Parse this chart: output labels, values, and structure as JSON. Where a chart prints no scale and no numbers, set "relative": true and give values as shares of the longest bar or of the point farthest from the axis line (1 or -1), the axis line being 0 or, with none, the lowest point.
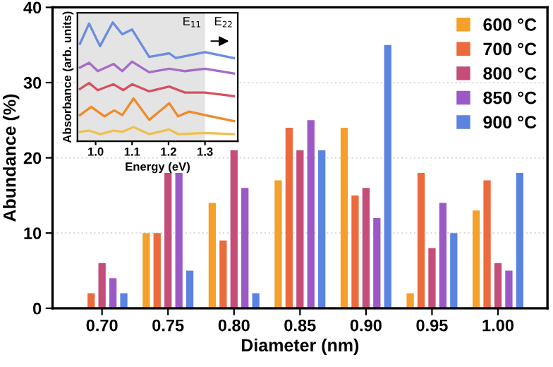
{
  "chart_data": [
    {
      "type": "bar",
      "xlabel": "Diameter (nm)",
      "ylabel": "Abundance (%)",
      "categories": [
        "0.70",
        "0.75",
        "0.80",
        "0.85",
        "0.90",
        "0.95",
        "1.00"
      ],
      "ylim": [
        0,
        40
      ],
      "yticks": [
        0,
        10,
        20,
        30,
        40
      ],
      "grid": "y",
      "legend": "top right",
      "marker": "square",
      "series": [
        {
          "name": "600 °C",
          "color": "#f5a02a",
          "values": [
            0,
            10,
            14,
            17,
            24,
            2,
            13
          ]
        },
        {
          "name": "700 °C",
          "color": "#ec6a3c",
          "values": [
            2,
            10,
            9,
            24,
            15,
            18,
            17
          ]
        },
        {
          "name": "800 °C",
          "color": "#c44d7a",
          "values": [
            6,
            18,
            21,
            21,
            16,
            8,
            6
          ]
        },
        {
          "name": "850 °C",
          "color": "#9b59c6",
          "values": [
            4,
            18,
            16,
            25,
            12,
            14,
            5
          ]
        },
        {
          "name": "900 °C",
          "color": "#5b84e0",
          "values": [
            2,
            5,
            2,
            21,
            35,
            10,
            18
          ]
        }
      ]
    },
    {
      "type": "line",
      "xlabel": "Energy (eV)",
      "ylabel": "Absorbance (arb. units)",
      "relative": true,
      "xlim": [
        0.95,
        1.39
      ],
      "xticks": [
        {
          "value": 1.0,
          "label": "1.0"
        },
        1.1,
        1.2,
        1.3
      ],
      "bands": [
        {
          "axis": "x",
          "from": 0.95,
          "to": 1.3,
          "label": "E$_{11}$",
          "color": "#e4e4e4"
        }
      ],
      "annotations": [
        "E$_{22}$"
      ],
      "series": [
        {
          "color": "#6a8de0",
          "x": [
            0.957,
            0.982,
            1.012,
            1.047,
            1.073,
            1.1,
            1.147,
            1.202,
            1.22,
            1.3,
            1.379
          ],
          "values": [
            0.82,
            0.99,
            0.8,
            1.0,
            0.9,
            0.94,
            0.71,
            0.74,
            0.7,
            0.75,
            0.7
          ]
        },
        {
          "color": "#a66bc8",
          "x": [
            0.957,
            0.982,
            1.006,
            1.049,
            1.073,
            1.1,
            1.147,
            1.202,
            1.245,
            1.3,
            1.379
          ],
          "values": [
            0.62,
            0.66,
            0.59,
            0.65,
            0.59,
            0.67,
            0.58,
            0.61,
            0.59,
            0.61,
            0.57
          ]
        },
        {
          "color": "#d65060",
          "x": [
            0.957,
            0.982,
            1.006,
            1.049,
            1.076,
            1.1,
            1.147,
            1.202,
            1.245,
            1.3,
            1.379
          ],
          "values": [
            0.44,
            0.49,
            0.43,
            0.48,
            0.43,
            0.48,
            0.42,
            0.46,
            0.41,
            0.41,
            0.38
          ]
        },
        {
          "color": "#f08a2a",
          "x": [
            0.957,
            0.988,
            1.024,
            1.051,
            1.073,
            1.104,
            1.147,
            1.202,
            1.226,
            1.257,
            1.3,
            1.379
          ],
          "values": [
            0.22,
            0.29,
            0.21,
            0.26,
            0.22,
            0.36,
            0.18,
            0.32,
            0.21,
            0.25,
            0.22,
            0.17
          ]
        },
        {
          "color": "#f0c050",
          "x": [
            0.957,
            0.982,
            1.012,
            1.049,
            1.073,
            1.104,
            1.147,
            1.202,
            1.226,
            1.3,
            1.379
          ],
          "values": [
            0.08,
            0.09,
            0.06,
            0.09,
            0.08,
            0.12,
            0.06,
            0.1,
            0.06,
            0.07,
            0.06
          ]
        }
      ]
    }
  ]
}
